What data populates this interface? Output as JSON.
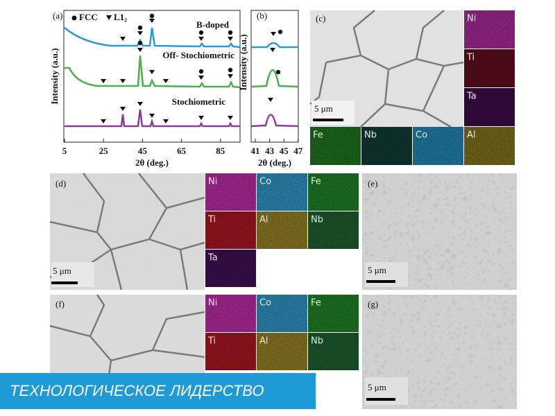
{
  "panels": {
    "a": {
      "label": "(a)",
      "y_label": "Intensity (a.u.)",
      "x_label": "2θ (deg.)",
      "x_ticks": [
        5,
        25,
        45,
        65,
        85
      ],
      "legend": [
        "FCC",
        "L1₂"
      ],
      "traces": [
        "B-doped",
        "Off- Stochiometric",
        "Stochiometric"
      ]
    },
    "b": {
      "label": "(b)",
      "y_label": "Intensity (a.u.)",
      "x_label": "2θ (deg.)",
      "x_ticks": [
        41,
        43,
        45,
        47
      ]
    },
    "c": {
      "label": "(c)",
      "scale": "5 μm",
      "maps": [
        "Ni",
        "Ti",
        "Ta",
        "Fe",
        "Nb",
        "Co",
        "Al"
      ]
    },
    "d": {
      "label": "(d)",
      "scale": "5 μm",
      "maps": [
        "Ni",
        "Co",
        "Fe",
        "Ti",
        "Al",
        "Nb",
        "Ta"
      ]
    },
    "e": {
      "label": "(e)",
      "scale": "5 μm"
    },
    "f": {
      "label": "(f)",
      "maps": [
        "Ni",
        "Co",
        "Fe",
        "Ti",
        "Al",
        "Nb"
      ]
    },
    "g": {
      "label": "(g)",
      "scale": "5 μm"
    }
  },
  "banner": "ТЕХНОЛОГИЧЕСКОЕ ЛИДЕРСТВО"
}
